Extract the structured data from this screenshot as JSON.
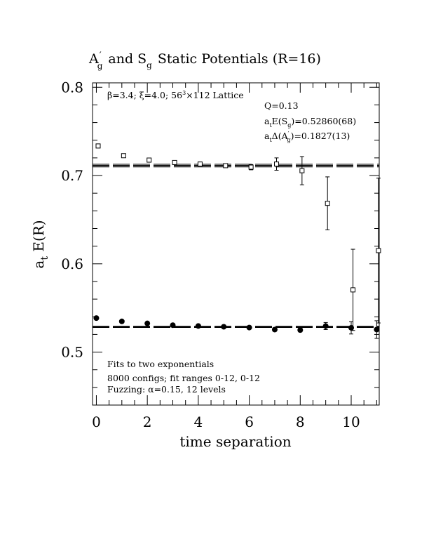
{
  "chart_data": {
    "type": "scatter",
    "title": "A′g and Sg Static Potentials (R=16)",
    "xlabel": "time separation",
    "ylabel": "a_t E(R)",
    "xlim": [
      -0.15,
      11.1
    ],
    "ylim": [
      0.44,
      0.805
    ],
    "xticks": [
      0,
      2,
      4,
      6,
      8,
      10
    ],
    "yticks": [
      0.5,
      0.6,
      0.7,
      0.8
    ],
    "xtick_labels": [
      "0",
      "2",
      "4",
      "6",
      "8",
      "10"
    ],
    "ytick_labels": [
      "0.5",
      "0.6",
      "0.7",
      "0.8"
    ],
    "grid": false,
    "annotations": {
      "lattice": "β=3.4; ξ=4.0; 56³×112 Lattice",
      "q": "Q=0.13",
      "esg": "a_tE(S_g)=0.52860(68)",
      "delta": "a_tΔ(A′_g)=0.1827(13)",
      "fit1": "Fits to two exponentials",
      "fit2": "8000 configs; fit ranges 0-12, 0-12",
      "fit3": "Fuzzing: α=0.15, 12 levels"
    },
    "fit_lines": {
      "Sg": {
        "value": 0.5286,
        "upper": 0.5293,
        "lower": 0.5279
      },
      "Ag": {
        "value": 0.7113,
        "upper": 0.7128,
        "lower": 0.7098
      }
    },
    "series": [
      {
        "marker": "filled-circle",
        "x": [
          0,
          1,
          2,
          3,
          4,
          5,
          6,
          7,
          8,
          9,
          10,
          11
        ],
        "y": [
          0.5385,
          0.5348,
          0.5325,
          0.5305,
          0.5296,
          0.5287,
          0.5278,
          0.5255,
          0.525,
          0.5295,
          0.5275,
          0.5255
        ],
        "err": [
          0,
          0,
          0.001,
          0.001,
          0.001,
          0.001,
          0.0015,
          0.002,
          0.002,
          0.004,
          0.007,
          0.01
        ]
      },
      {
        "marker": "open-square",
        "x": [
          0.07,
          1.07,
          2.07,
          3.07,
          4.07,
          5.07,
          6.07,
          7.07,
          8.07,
          9.07,
          10.07,
          11.07
        ],
        "y": [
          0.7335,
          0.7225,
          0.7175,
          0.7148,
          0.713,
          0.7112,
          0.7095,
          0.713,
          0.7055,
          0.6685,
          0.5705,
          0.615
        ],
        "err": [
          0,
          0,
          0.0015,
          0.0015,
          0.0015,
          0.002,
          0.003,
          0.007,
          0.016,
          0.03,
          0.046,
          0.082
        ]
      }
    ]
  }
}
